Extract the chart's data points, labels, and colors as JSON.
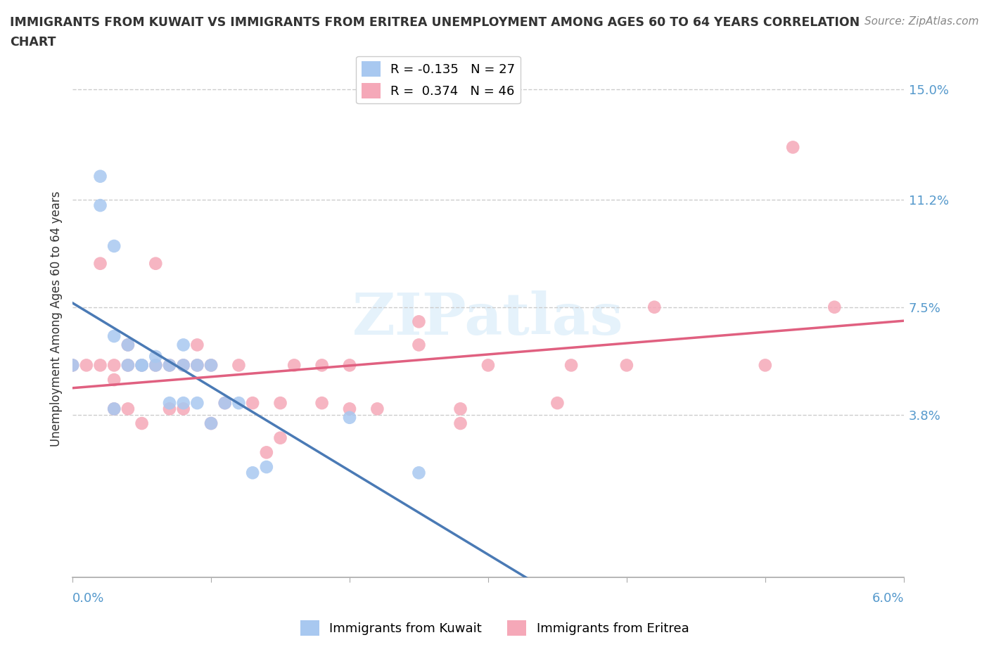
{
  "title_line1": "IMMIGRANTS FROM KUWAIT VS IMMIGRANTS FROM ERITREA UNEMPLOYMENT AMONG AGES 60 TO 64 YEARS CORRELATION",
  "title_line2": "CHART",
  "source": "Source: ZipAtlas.com",
  "ylabel": "Unemployment Among Ages 60 to 64 years",
  "y_ticks": [
    0.0,
    0.038,
    0.075,
    0.112,
    0.15
  ],
  "y_tick_labels": [
    "",
    "3.8%",
    "7.5%",
    "11.2%",
    "15.0%"
  ],
  "x_lim": [
    0.0,
    0.06
  ],
  "y_lim": [
    -0.018,
    0.16
  ],
  "kuwait_R": -0.135,
  "kuwait_N": 27,
  "eritrea_R": 0.374,
  "eritrea_N": 46,
  "kuwait_color": "#a8c8f0",
  "eritrea_color": "#f5a8b8",
  "kuwait_line_color": "#4a7ab5",
  "eritrea_line_color": "#e06080",
  "watermark": "ZIPatlas",
  "kuwait_points_x": [
    0.0,
    0.002,
    0.002,
    0.003,
    0.003,
    0.003,
    0.004,
    0.004,
    0.005,
    0.005,
    0.006,
    0.006,
    0.007,
    0.007,
    0.008,
    0.008,
    0.008,
    0.009,
    0.009,
    0.01,
    0.01,
    0.011,
    0.012,
    0.013,
    0.014,
    0.02,
    0.025
  ],
  "kuwait_points_y": [
    0.055,
    0.12,
    0.11,
    0.096,
    0.065,
    0.04,
    0.055,
    0.062,
    0.055,
    0.055,
    0.058,
    0.055,
    0.055,
    0.042,
    0.055,
    0.062,
    0.042,
    0.055,
    0.042,
    0.055,
    0.035,
    0.042,
    0.042,
    0.018,
    0.02,
    0.037,
    0.018
  ],
  "eritrea_points_x": [
    0.0,
    0.001,
    0.002,
    0.002,
    0.003,
    0.003,
    0.003,
    0.004,
    0.004,
    0.004,
    0.005,
    0.005,
    0.006,
    0.006,
    0.007,
    0.007,
    0.008,
    0.008,
    0.009,
    0.009,
    0.01,
    0.01,
    0.011,
    0.012,
    0.013,
    0.014,
    0.015,
    0.015,
    0.016,
    0.018,
    0.018,
    0.02,
    0.02,
    0.022,
    0.025,
    0.025,
    0.028,
    0.028,
    0.03,
    0.035,
    0.036,
    0.04,
    0.042,
    0.05,
    0.052,
    0.055
  ],
  "eritrea_points_y": [
    0.055,
    0.055,
    0.09,
    0.055,
    0.055,
    0.05,
    0.04,
    0.062,
    0.055,
    0.04,
    0.055,
    0.035,
    0.055,
    0.09,
    0.055,
    0.04,
    0.055,
    0.04,
    0.062,
    0.055,
    0.055,
    0.035,
    0.042,
    0.055,
    0.042,
    0.025,
    0.042,
    0.03,
    0.055,
    0.055,
    0.042,
    0.055,
    0.04,
    0.04,
    0.07,
    0.062,
    0.035,
    0.04,
    0.055,
    0.042,
    0.055,
    0.055,
    0.075,
    0.055,
    0.13,
    0.075
  ]
}
